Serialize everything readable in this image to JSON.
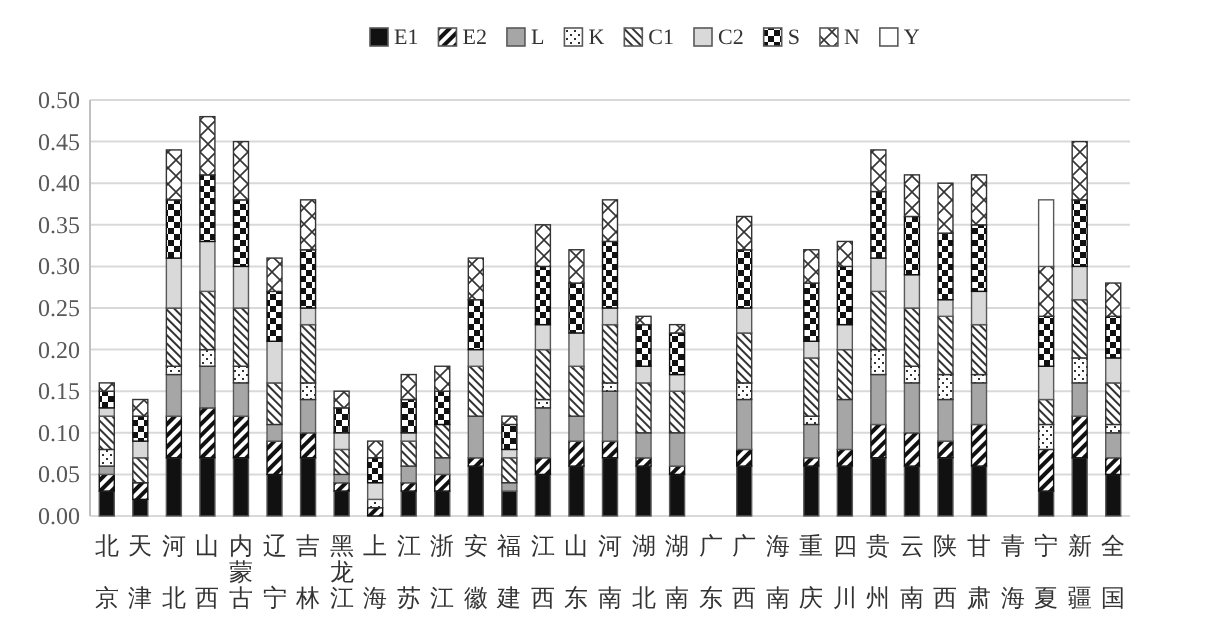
{
  "chart_data": {
    "type": "bar",
    "stacked": true,
    "grid": "y",
    "legend": "top",
    "categories": [
      "北京",
      "天津",
      "河北",
      "山西",
      "内蒙古",
      "辽宁",
      "吉林",
      "黑龙江",
      "上海",
      "江苏",
      "浙江",
      "安徽",
      "福建",
      "江西",
      "山东",
      "河南",
      "湖北",
      "湖南",
      "广东",
      "广西",
      "海南",
      "重庆",
      "四川",
      "贵州",
      "云南",
      "陕西",
      "甘肃",
      "青海",
      "宁夏",
      "新疆",
      "全国"
    ],
    "ylim": [
      0,
      0.5
    ],
    "yticks": [
      {
        "value": 0,
        "label": "0.00"
      },
      {
        "value": 0.05,
        "label": "0.05"
      },
      {
        "value": 0.1,
        "label": "0.10"
      },
      {
        "value": 0.15,
        "label": "0.15"
      },
      {
        "value": 0.2,
        "label": "0.20"
      },
      {
        "value": 0.25,
        "label": "0.25"
      },
      {
        "value": 0.3,
        "label": "0.30"
      },
      {
        "value": 0.35,
        "label": "0.35"
      },
      {
        "value": 0.4,
        "label": "0.40"
      },
      {
        "value": 0.45,
        "label": "0.45"
      },
      {
        "value": 0.5,
        "label": "0.50"
      }
    ],
    "series": [
      {
        "name": "E1",
        "color": "#111111",
        "values": [
          0.03,
          0.02,
          0.07,
          0.07,
          0.07,
          0.05,
          0.07,
          0.03,
          0,
          0.03,
          0.03,
          0.06,
          0.03,
          0.05,
          0.06,
          0.07,
          0.06,
          0.05,
          null,
          0.06,
          null,
          0.06,
          0.06,
          0.07,
          0.06,
          0.07,
          0.06,
          null,
          0.03,
          0.07,
          0.05
        ]
      },
      {
        "name": "E2",
        "color": "#111111",
        "values": [
          0.02,
          0.02,
          0.05,
          0.06,
          0.05,
          0.04,
          0.03,
          0.01,
          0.01,
          0.01,
          0.02,
          0.01,
          0,
          0.02,
          0.03,
          0.02,
          0.01,
          0.01,
          null,
          0.02,
          null,
          0.01,
          0.02,
          0.04,
          0.04,
          0.02,
          0.05,
          null,
          0.05,
          0.05,
          0.02
        ]
      },
      {
        "name": "L",
        "color": "#a6a6a6",
        "values": [
          0.01,
          0,
          0.05,
          0.05,
          0.04,
          0.02,
          0.04,
          0.01,
          0,
          0.02,
          0.02,
          0.05,
          0.01,
          0.06,
          0.03,
          0.06,
          0.03,
          0.04,
          null,
          0.06,
          null,
          0.04,
          0.06,
          0.06,
          0.06,
          0.05,
          0.05,
          null,
          0,
          0.04,
          0.03
        ]
      },
      {
        "name": "K",
        "color": "#333333",
        "values": [
          0.02,
          0,
          0.01,
          0.02,
          0.02,
          0,
          0.02,
          0,
          0.01,
          0,
          0,
          0,
          0,
          0.01,
          0,
          0.01,
          0,
          0,
          null,
          0.02,
          null,
          0.01,
          0,
          0.03,
          0.02,
          0.03,
          0.01,
          null,
          0.03,
          0.03,
          0.01
        ]
      },
      {
        "name": "C1",
        "color": "#333333",
        "values": [
          0.04,
          0.03,
          0.07,
          0.07,
          0.07,
          0.05,
          0.07,
          0.03,
          0,
          0.03,
          0.04,
          0.06,
          0.03,
          0.06,
          0.06,
          0.07,
          0.06,
          0.05,
          null,
          0.06,
          null,
          0.07,
          0.06,
          0.07,
          0.07,
          0.07,
          0.06,
          null,
          0.03,
          0.07,
          0.05
        ]
      },
      {
        "name": "C2",
        "color": "#d9d9d9",
        "values": [
          0.01,
          0.02,
          0.06,
          0.06,
          0.05,
          0.05,
          0.02,
          0.02,
          0.02,
          0.01,
          0,
          0.02,
          0.01,
          0.03,
          0.04,
          0.02,
          0.02,
          0.02,
          null,
          0.03,
          null,
          0.02,
          0.03,
          0.04,
          0.04,
          0.02,
          0.04,
          null,
          0.04,
          0.04,
          0.03
        ]
      },
      {
        "name": "S",
        "color": "#111111",
        "values": [
          0.02,
          0.03,
          0.07,
          0.08,
          0.08,
          0.06,
          0.07,
          0.03,
          0.03,
          0.04,
          0.04,
          0.06,
          0.03,
          0.07,
          0.06,
          0.08,
          0.05,
          0.05,
          null,
          0.07,
          null,
          0.07,
          0.07,
          0.08,
          0.07,
          0.08,
          0.08,
          null,
          0.06,
          0.08,
          0.05
        ]
      },
      {
        "name": "N",
        "color": "#333333",
        "values": [
          0.01,
          0.02,
          0.06,
          0.07,
          0.07,
          0.04,
          0.06,
          0.02,
          0.02,
          0.03,
          0.03,
          0.05,
          0.01,
          0.05,
          0.04,
          0.05,
          0.01,
          0.01,
          null,
          0.04,
          null,
          0.04,
          0.03,
          0.05,
          0.05,
          0.06,
          0.06,
          null,
          0.06,
          0.07,
          0.04
        ]
      },
      {
        "name": "Y",
        "color": "#ffffff",
        "values": [
          0,
          0,
          0,
          0,
          0,
          0,
          0,
          0,
          0,
          0,
          0,
          0,
          0,
          0,
          0,
          0,
          0,
          0,
          null,
          0,
          null,
          0,
          0,
          0,
          0,
          0,
          0,
          null,
          0.08,
          0,
          0
        ]
      }
    ]
  }
}
